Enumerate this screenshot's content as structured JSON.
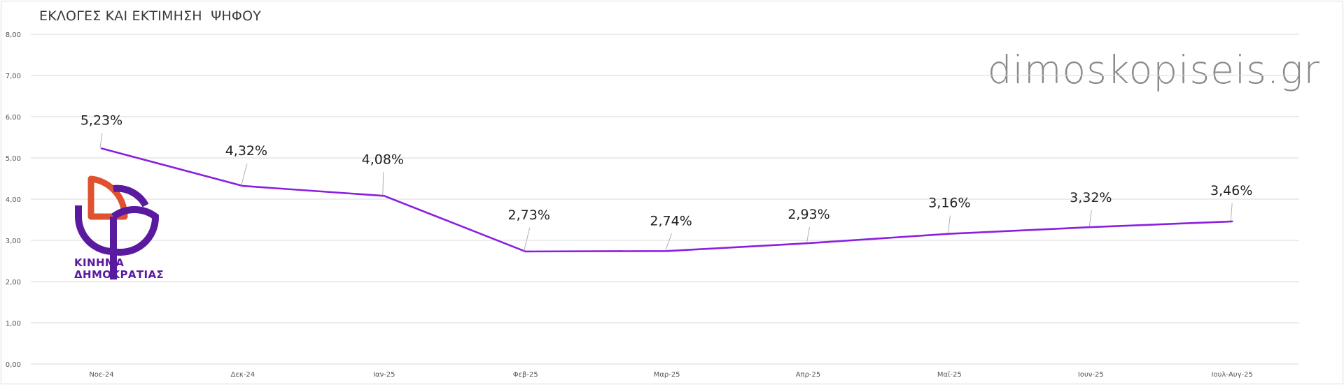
{
  "title": "ΕΚΛΟΓΕΣ ΚΑΙ ΕΚΤΙΜΗΣΗ  ΨΗΦΟΥ",
  "watermark": "dimoskopiseis.gr",
  "logo": {
    "icon": "kinima-dimokratias-logo",
    "line1": "ΚΙΝΗΜΑ",
    "line2": "ΔΗΜΟΚΡΑΤΙΑΣ",
    "colors": {
      "orange": "#e0512f",
      "purple": "#5a1aa0"
    }
  },
  "colors": {
    "line": "#8a1fe0",
    "grid": "#d9d9d9",
    "tick_text": "#555555",
    "label_text": "#222222"
  },
  "chart_data": {
    "type": "line",
    "title": "ΕΚΛΟΓΕΣ ΚΑΙ ΕΚΤΙΜΗΣΗ  ΨΗΦΟΥ",
    "categories": [
      "Νοε-24",
      "Δεκ-24",
      "Ιαν-25",
      "Φεβ-25",
      "Μαρ-25",
      "Απρ-25",
      "Μαϊ-25",
      "Ιουν-25",
      "Ιουλ-Αυγ-25"
    ],
    "series": [
      {
        "values": [
          5.23,
          4.32,
          4.08,
          2.73,
          2.74,
          2.93,
          3.16,
          3.32,
          3.46
        ],
        "labels": [
          "5,23%",
          "4,32%",
          "4,08%",
          "2,73%",
          "2,74%",
          "2,93%",
          "3,16%",
          "3,32%",
          "3,46%"
        ]
      }
    ],
    "ylim": [
      0,
      8
    ],
    "yticks": [
      0,
      1,
      2,
      3,
      4,
      5,
      6,
      7,
      8
    ],
    "ytick_labels": [
      "0,00",
      "1,00",
      "2,00",
      "3,00",
      "4,00",
      "5,00",
      "6,00",
      "7,00",
      "8,00"
    ],
    "grid": true,
    "legend": "none"
  }
}
